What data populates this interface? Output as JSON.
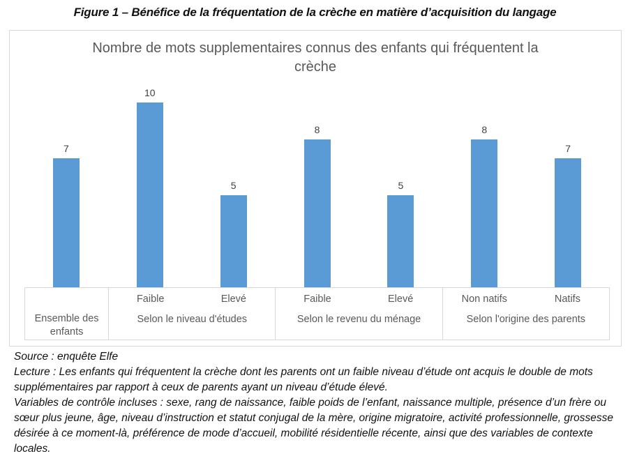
{
  "figure_title": "Figure 1 – Bénéfice de la fréquentation de la crèche en matière d’acquisition du langage",
  "chart_data": {
    "type": "bar",
    "title": "Nombre de mots supplementaires connus des enfants qui fréquentent la crèche",
    "bar_color": "#5B9BD5",
    "label_color": "#404040",
    "axis_text_color": "#595959",
    "ylim": [
      0,
      11
    ],
    "y_axis_visible": false,
    "grid": false,
    "legend": false,
    "data_labels": true,
    "categories": [
      "Ensemble des enfants",
      "Faible (Selon le niveau d'études)",
      "Elevé (Selon le niveau d'études)",
      "Faible (Selon le revenu du ménage)",
      "Elevé (Selon le revenu du ménage)",
      "Non natifs (Selon l'origine des parents)",
      "Natifs (Selon l'origine des parents)"
    ],
    "values": [
      7,
      10,
      5,
      8,
      5,
      8,
      7
    ],
    "groups": [
      {
        "label": "Ensemble des enfants",
        "bars": [
          {
            "sublabel": "",
            "value": 7
          }
        ]
      },
      {
        "label": "Selon le niveau d'études",
        "bars": [
          {
            "sublabel": "Faible",
            "value": 10
          },
          {
            "sublabel": "Elevé",
            "value": 5
          }
        ]
      },
      {
        "label": "Selon le revenu du ménage",
        "bars": [
          {
            "sublabel": "Faible",
            "value": 8
          },
          {
            "sublabel": "Elevé",
            "value": 5
          }
        ]
      },
      {
        "label": "Selon l'origine des parents",
        "bars": [
          {
            "sublabel": "Non natifs",
            "value": 8
          },
          {
            "sublabel": "Natifs",
            "value": 7
          }
        ]
      }
    ]
  },
  "notes": {
    "source": "Source : enquête Elfe",
    "lecture": "Lecture : Les enfants qui fréquentent la crèche dont les parents ont un faible niveau d’étude ont acquis le double de mots supplémentaires par rapport à ceux de parents ayant un niveau d’étude élevé.",
    "variables": "Variables de contrôle incluses : sexe, rang de naissance, faible poids de l’enfant, naissance multiple, présence d’un frère ou sœur plus jeune, âge, niveau d’instruction et statut conjugal de la mère, origine migratoire, activité professionnelle, grossesse désirée à ce moment-là, préférence de mode d’accueil, mobilité résidentielle récente, ainsi que des variables de contexte locales."
  }
}
